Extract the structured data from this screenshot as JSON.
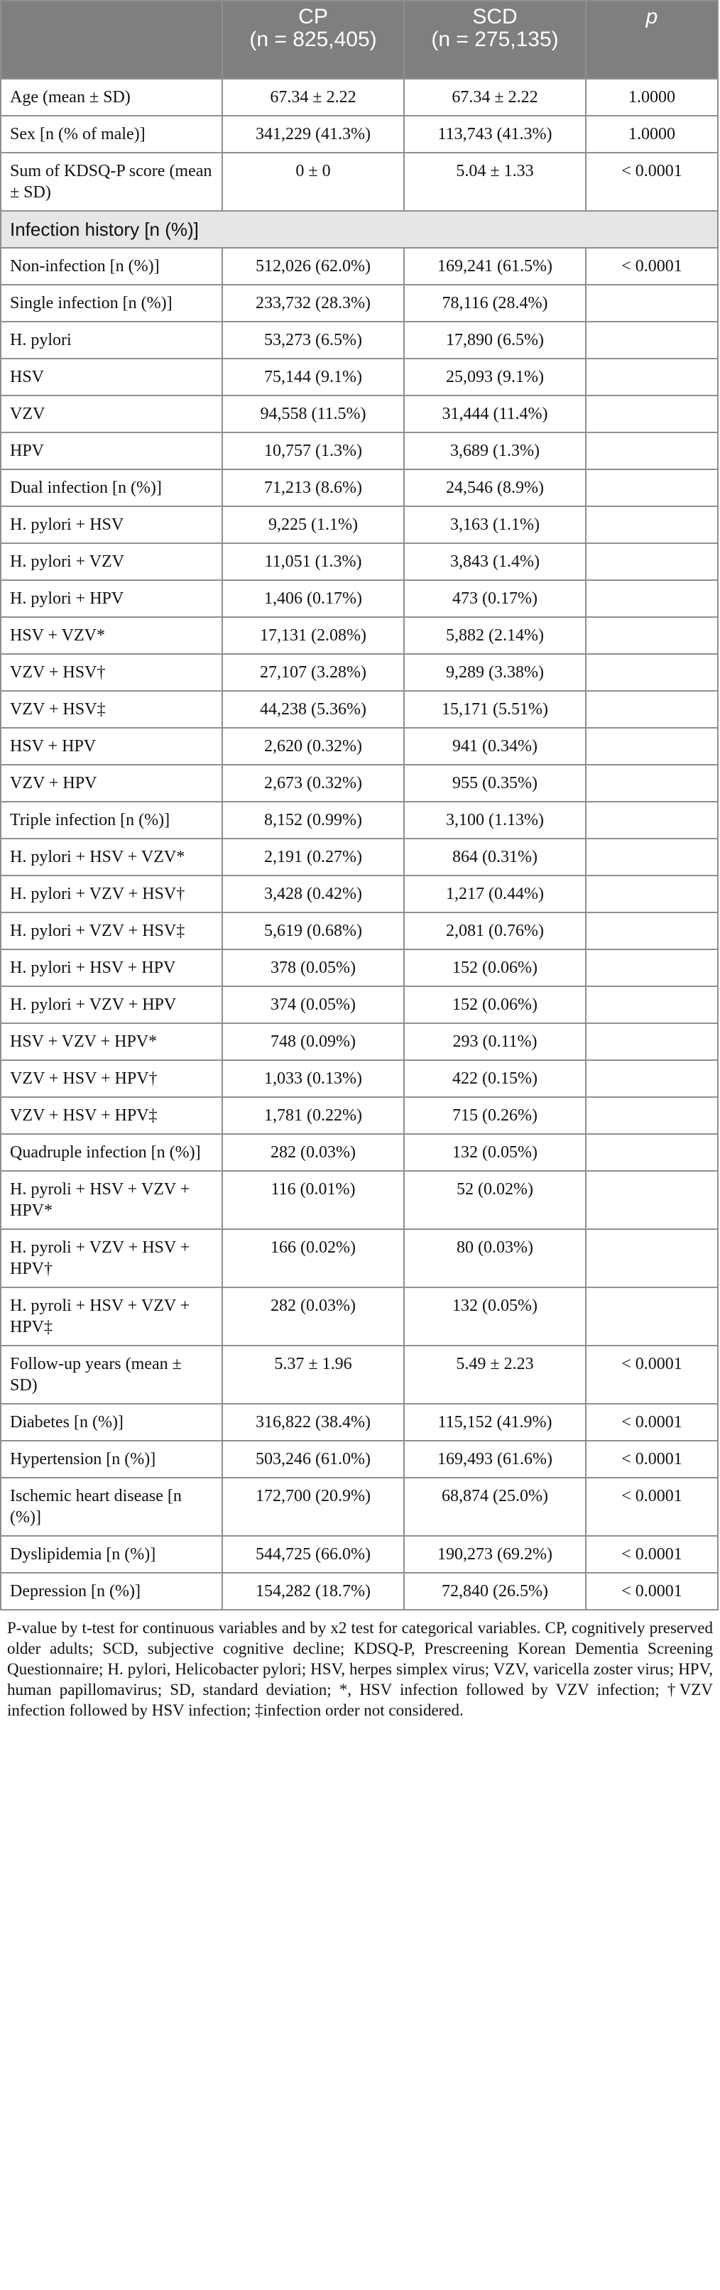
{
  "header": {
    "col0": "",
    "cp_name": "CP",
    "cp_n": "(n = 825,405)",
    "scd_name": "SCD",
    "scd_n": "(n = 275,135)",
    "p": "p"
  },
  "rows_top": [
    {
      "label": "Age (mean ± SD)",
      "cp": "67.34 ± 2.22",
      "scd": "67.34 ± 2.22",
      "p": "1.0000"
    },
    {
      "label": "Sex [n (% of male)]",
      "cp": "341,229 (41.3%)",
      "scd": "113,743 (41.3%)",
      "p": "1.0000"
    },
    {
      "label": "Sum of KDSQ-P score (mean ± SD)",
      "cp": "0 ± 0",
      "scd": "5.04 ± 1.33",
      "p": "< 0.0001"
    }
  ],
  "section_label": "Infection history [n (%)]",
  "rows_inf": [
    {
      "label": "Non-infection [n (%)]",
      "cp": "512,026 (62.0%)",
      "scd": "169,241 (61.5%)",
      "p": "< 0.0001"
    },
    {
      "label": "Single infection [n (%)]",
      "cp": "233,732 (28.3%)",
      "scd": "78,116 (28.4%)",
      "p": ""
    },
    {
      "label": "H. pylori",
      "cp": "53,273 (6.5%)",
      "scd": "17,890 (6.5%)",
      "p": ""
    },
    {
      "label": "HSV",
      "cp": "75,144 (9.1%)",
      "scd": "25,093 (9.1%)",
      "p": ""
    },
    {
      "label": "VZV",
      "cp": "94,558 (11.5%)",
      "scd": "31,444 (11.4%)",
      "p": ""
    },
    {
      "label": "HPV",
      "cp": "10,757 (1.3%)",
      "scd": "3,689 (1.3%)",
      "p": ""
    },
    {
      "label": "Dual infection [n (%)]",
      "cp": "71,213 (8.6%)",
      "scd": "24,546 (8.9%)",
      "p": ""
    },
    {
      "label": "H. pylori + HSV",
      "cp": "9,225 (1.1%)",
      "scd": "3,163 (1.1%)",
      "p": ""
    },
    {
      "label": "H. pylori + VZV",
      "cp": "11,051 (1.3%)",
      "scd": "3,843 (1.4%)",
      "p": ""
    },
    {
      "label": "H. pylori + HPV",
      "cp": "1,406 (0.17%)",
      "scd": "473 (0.17%)",
      "p": ""
    },
    {
      "label": "HSV + VZV*",
      "cp": "17,131 (2.08%)",
      "scd": "5,882 (2.14%)",
      "p": ""
    },
    {
      "label": "VZV + HSV†",
      "cp": "27,107 (3.28%)",
      "scd": "9,289 (3.38%)",
      "p": ""
    },
    {
      "label": "VZV + HSV‡",
      "cp": "44,238 (5.36%)",
      "scd": "15,171 (5.51%)",
      "p": ""
    },
    {
      "label": "HSV + HPV",
      "cp": "2,620 (0.32%)",
      "scd": "941 (0.34%)",
      "p": ""
    },
    {
      "label": "VZV + HPV",
      "cp": "2,673 (0.32%)",
      "scd": "955 (0.35%)",
      "p": ""
    },
    {
      "label": "Triple infection [n (%)]",
      "cp": "8,152 (0.99%)",
      "scd": "3,100 (1.13%)",
      "p": ""
    },
    {
      "label": "H. pylori + HSV + VZV*",
      "cp": "2,191 (0.27%)",
      "scd": "864 (0.31%)",
      "p": ""
    },
    {
      "label": "H. pylori + VZV + HSV†",
      "cp": "3,428 (0.42%)",
      "scd": "1,217 (0.44%)",
      "p": ""
    },
    {
      "label": "H. pylori + VZV + HSV‡",
      "cp": "5,619 (0.68%)",
      "scd": "2,081 (0.76%)",
      "p": ""
    },
    {
      "label": "H. pylori + HSV + HPV",
      "cp": "378 (0.05%)",
      "scd": "152 (0.06%)",
      "p": ""
    },
    {
      "label": "H. pylori + VZV + HPV",
      "cp": "374 (0.05%)",
      "scd": "152 (0.06%)",
      "p": ""
    },
    {
      "label": "HSV + VZV + HPV*",
      "cp": "748 (0.09%)",
      "scd": "293 (0.11%)",
      "p": ""
    },
    {
      "label": "VZV + HSV + HPV†",
      "cp": "1,033 (0.13%)",
      "scd": "422 (0.15%)",
      "p": ""
    },
    {
      "label": "VZV + HSV + HPV‡",
      "cp": "1,781 (0.22%)",
      "scd": "715 (0.26%)",
      "p": ""
    },
    {
      "label": "Quadruple infection [n (%)]",
      "cp": "282 (0.03%)",
      "scd": "132 (0.05%)",
      "p": ""
    },
    {
      "label": "H. pyroli + HSV + VZV + HPV*",
      "cp": "116 (0.01%)",
      "scd": "52 (0.02%)",
      "p": ""
    },
    {
      "label": "H. pyroli + VZV + HSV + HPV†",
      "cp": "166 (0.02%)",
      "scd": "80 (0.03%)",
      "p": ""
    },
    {
      "label": "H. pyroli + HSV + VZV + HPV‡",
      "cp": "282 (0.03%)",
      "scd": "132 (0.05%)",
      "p": ""
    }
  ],
  "rows_bottom": [
    {
      "label": "Follow-up years (mean ± SD)",
      "cp": "5.37 ± 1.96",
      "scd": "5.49 ± 2.23",
      "p": "< 0.0001"
    },
    {
      "label": "Diabetes [n (%)]",
      "cp": "316,822 (38.4%)",
      "scd": "115,152 (41.9%)",
      "p": "< 0.0001"
    },
    {
      "label": "Hypertension [n (%)]",
      "cp": "503,246 (61.0%)",
      "scd": "169,493 (61.6%)",
      "p": "< 0.0001"
    },
    {
      "label": "Ischemic heart disease [n (%)]",
      "cp": "172,700 (20.9%)",
      "scd": "68,874 (25.0%)",
      "p": "< 0.0001"
    },
    {
      "label": "Dyslipidemia [n (%)]",
      "cp": "544,725 (66.0%)",
      "scd": "190,273 (69.2%)",
      "p": "< 0.0001"
    },
    {
      "label": "Depression [n (%)]",
      "cp": "154,282 (18.7%)",
      "scd": "72,840 (26.5%)",
      "p": "< 0.0001"
    }
  ],
  "footnote": "P-value by t-test for continuous variables and by x2 test for categorical variables. CP, cognitively preserved older adults; SCD, subjective cognitive decline; KDSQ-P, Prescreening Korean Dementia Screening Questionnaire; H. pylori, Helicobacter pylori; HSV, herpes simplex virus; VZV, varicella zoster virus; HPV, human papillomavirus; SD, standard deviation; *, HSV infection followed by VZV infection; †VZV infection followed by HSV infection; ‡infection order not considered."
}
